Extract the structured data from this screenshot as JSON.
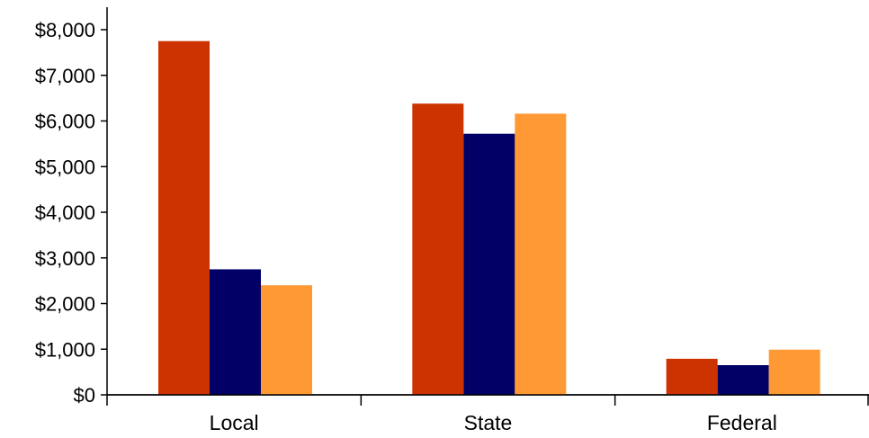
{
  "chart_data": {
    "type": "bar",
    "title": "",
    "xlabel": "",
    "ylabel": "",
    "categories": [
      "Local",
      "State",
      "Federal"
    ],
    "series": [
      {
        "values": [
          7750,
          6380,
          790
        ],
        "color": "#cc3300"
      },
      {
        "values": [
          2750,
          5720,
          650
        ],
        "color": "#000066"
      },
      {
        "values": [
          2400,
          6160,
          990
        ],
        "color": "#ff9933"
      }
    ],
    "ylim": [
      0,
      8000
    ],
    "yticks": [
      0,
      1000,
      2000,
      3000,
      4000,
      5000,
      6000,
      7000,
      8000
    ],
    "ytick_labels": [
      "$0",
      "$1,000",
      "$2,000",
      "$3,000",
      "$4,000",
      "$5,000",
      "$6,000",
      "$7,000",
      "$8,000"
    ],
    "grid": false,
    "legend": "none"
  }
}
